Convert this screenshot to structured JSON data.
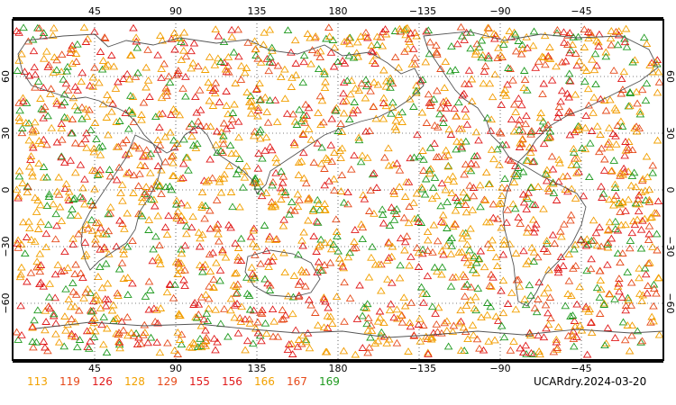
{
  "map": {
    "top_lon_ticks": [
      "45",
      "90",
      "135",
      "180",
      "−135",
      "−90",
      "−45"
    ],
    "bottom_lon_ticks": [
      "45",
      "90",
      "135",
      "180",
      "−135",
      "−90",
      "−45"
    ],
    "lat_ticks": [
      "60",
      "30",
      "0",
      "−30",
      "−60"
    ],
    "colors": {
      "frame": "#000000",
      "coast": "#555555",
      "grid": "#000000",
      "red": "#e01a1a",
      "orange": "#f29a00",
      "green": "#1f9a1f"
    }
  },
  "legend": [
    {
      "label": "113",
      "color": "#f2a100"
    },
    {
      "label": "119",
      "color": "#e64a1a"
    },
    {
      "label": "126",
      "color": "#e01a1a"
    },
    {
      "label": "128",
      "color": "#f2a100"
    },
    {
      "label": "129",
      "color": "#e64a1a"
    },
    {
      "label": "155",
      "color": "#e01a1a"
    },
    {
      "label": "156",
      "color": "#e01a1a"
    },
    {
      "label": "166",
      "color": "#f2a100"
    },
    {
      "label": "167",
      "color": "#e64a1a"
    },
    {
      "label": "169",
      "color": "#1f9a1f"
    }
  ],
  "dataset_label": "UCARdry.2024-03-20"
}
